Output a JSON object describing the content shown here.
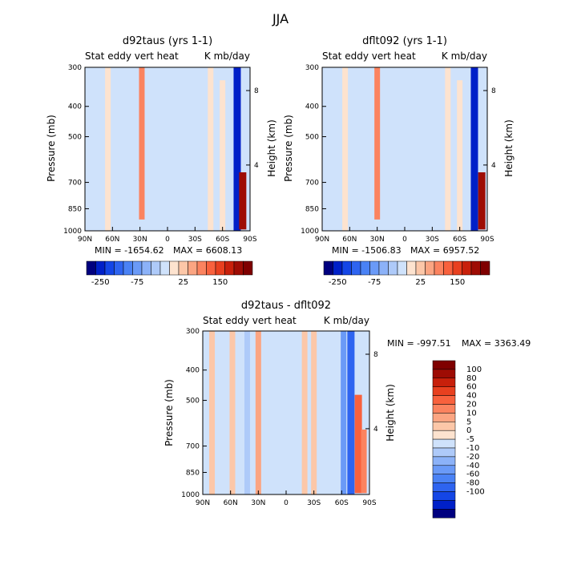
{
  "figure_title": "JJA",
  "colors": {
    "neg": [
      "#00007f",
      "#0020c8",
      "#1446e6",
      "#2e64f0",
      "#4a82f5",
      "#6a9af7",
      "#8cb2f8",
      "#aecaf9",
      "#cfe2fb"
    ],
    "pos": [
      "#fde3cf",
      "#fcc7a8",
      "#fba582",
      "#fb835f",
      "#f8613d",
      "#e8401f",
      "#c8200b",
      "#9e0c04",
      "#7f0000"
    ],
    "background_field": "#cfe2fb",
    "positive_field": "#fde3cf"
  },
  "chart_data": [
    {
      "type": "heatmap",
      "title": "d92taus (yrs 1-1)",
      "left_label": "Stat eddy vert heat",
      "right_label": "K mb/day",
      "xlabel": "",
      "ylabel": "Pressure (mb)",
      "ylabel_right": "Height (km)",
      "x_ticks": [
        "90N",
        "60N",
        "30N",
        "0",
        "30S",
        "60S",
        "90S"
      ],
      "y_ticks": [
        "300",
        "400",
        "500",
        "700",
        "850",
        "1000"
      ],
      "y_ticks_right": [
        "8",
        "4"
      ],
      "min_label": "MIN = -1654.62",
      "max_label": "MAX = 6608.13",
      "colorbar_labels": [
        "-250",
        "-75",
        "25",
        "150"
      ],
      "features": [
        {
          "lat": 28,
          "p_top": 300,
          "p_bot": 920,
          "value": 30
        },
        {
          "lat": -47,
          "p_top": 300,
          "p_bot": 1000,
          "value": 3
        },
        {
          "lat": -60,
          "p_top": 330,
          "p_bot": 1000,
          "value": 2
        },
        {
          "lat": 65,
          "p_top": 300,
          "p_bot": 1000,
          "value": 2
        },
        {
          "lat": -76,
          "p_top": 300,
          "p_bot": 1000,
          "value": -120
        },
        {
          "lat": -82,
          "p_top": 650,
          "p_bot": 990,
          "value": 150
        }
      ]
    },
    {
      "type": "heatmap",
      "title": "dflt092 (yrs 1-1)",
      "left_label": "Stat eddy vert heat",
      "right_label": "K mb/day",
      "xlabel": "",
      "ylabel": "Pressure (mb)",
      "ylabel_right": "Height (km)",
      "x_ticks": [
        "90N",
        "60N",
        "30N",
        "0",
        "30S",
        "60S",
        "90S"
      ],
      "y_ticks": [
        "300",
        "400",
        "500",
        "700",
        "850",
        "1000"
      ],
      "y_ticks_right": [
        "8",
        "4"
      ],
      "min_label": "MIN = -1506.83",
      "max_label": "MAX = 6957.52",
      "colorbar_labels": [
        "-250",
        "-75",
        "25",
        "150"
      ],
      "features": [
        {
          "lat": 30,
          "p_top": 300,
          "p_bot": 920,
          "value": 30
        },
        {
          "lat": -47,
          "p_top": 300,
          "p_bot": 1000,
          "value": 3
        },
        {
          "lat": -60,
          "p_top": 330,
          "p_bot": 1000,
          "value": 2
        },
        {
          "lat": 65,
          "p_top": 300,
          "p_bot": 1000,
          "value": 2
        },
        {
          "lat": -76,
          "p_top": 300,
          "p_bot": 1000,
          "value": -120
        },
        {
          "lat": -84,
          "p_top": 650,
          "p_bot": 990,
          "value": 150
        }
      ]
    },
    {
      "type": "heatmap",
      "title": "d92taus - dflt092",
      "left_label": "Stat eddy vert heat",
      "right_label": "K mb/day",
      "xlabel": "",
      "ylabel": "Pressure (mb)",
      "ylabel_right": "Height (km)",
      "x_ticks": [
        "90N",
        "60N",
        "30N",
        "0",
        "30S",
        "60S",
        "90S"
      ],
      "y_ticks": [
        "300",
        "400",
        "500",
        "700",
        "850",
        "1000"
      ],
      "y_ticks_right": [
        "8",
        "4"
      ],
      "min_label": "MIN = -997.51",
      "max_label": "MAX = 3363.49",
      "colorbar_labels": [
        "100",
        "80",
        "60",
        "40",
        "20",
        "10",
        "5",
        "0",
        "-5",
        "-10",
        "-20",
        "-40",
        "-60",
        "-80",
        "-100"
      ],
      "features": [
        {
          "lat": 80,
          "p_top": 300,
          "p_bot": 1000,
          "value": 6
        },
        {
          "lat": 58,
          "p_top": 300,
          "p_bot": 1000,
          "value": 6
        },
        {
          "lat": 42,
          "p_top": 300,
          "p_bot": 1000,
          "value": -8
        },
        {
          "lat": 30,
          "p_top": 300,
          "p_bot": 1000,
          "value": 12
        },
        {
          "lat": 20,
          "p_top": 300,
          "p_bot": 1000,
          "value": -5
        },
        {
          "lat": -20,
          "p_top": 300,
          "p_bot": 1000,
          "value": 10
        },
        {
          "lat": -30,
          "p_top": 300,
          "p_bot": 1000,
          "value": 6
        },
        {
          "lat": -62,
          "p_top": 300,
          "p_bot": 1000,
          "value": -30
        },
        {
          "lat": -70,
          "p_top": 300,
          "p_bot": 1000,
          "value": -80
        },
        {
          "lat": -78,
          "p_top": 480,
          "p_bot": 990,
          "value": 60
        },
        {
          "lat": -84,
          "p_top": 620,
          "p_bot": 990,
          "value": 40
        }
      ]
    }
  ]
}
